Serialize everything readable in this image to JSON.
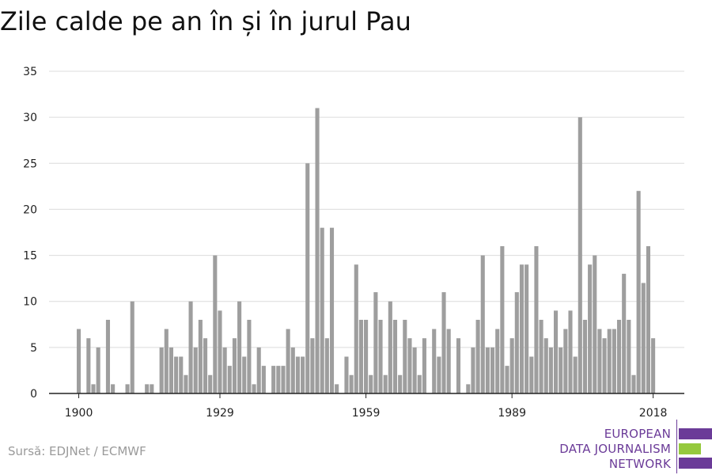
{
  "title": "Zile calde pe an în și în jurul Pau",
  "source": "Sursă: EDJNet / ECMWF",
  "logo": {
    "line1": "EUROPEAN",
    "line2": "DATA JOURNALISM",
    "line3": "NETWORK",
    "primary_color": "#6b3b98",
    "accent_color": "#95c93d"
  },
  "chart_data": {
    "type": "bar",
    "title": "Zile calde pe an în și în jurul Pau",
    "xlabel": "",
    "ylabel": "",
    "ylim": [
      0,
      35
    ],
    "yticks": [
      0,
      5,
      10,
      15,
      20,
      25,
      30,
      35
    ],
    "xticks": [
      1900,
      1929,
      1959,
      1989,
      2018
    ],
    "grid": true,
    "bar_color": "#9e9e9e",
    "x": [
      1900,
      1901,
      1902,
      1903,
      1904,
      1905,
      1906,
      1907,
      1908,
      1909,
      1910,
      1911,
      1912,
      1913,
      1914,
      1915,
      1916,
      1917,
      1918,
      1919,
      1920,
      1921,
      1922,
      1923,
      1924,
      1925,
      1926,
      1927,
      1928,
      1929,
      1930,
      1931,
      1932,
      1933,
      1934,
      1935,
      1936,
      1937,
      1938,
      1939,
      1940,
      1941,
      1942,
      1943,
      1944,
      1945,
      1946,
      1947,
      1948,
      1949,
      1950,
      1951,
      1952,
      1953,
      1954,
      1955,
      1956,
      1957,
      1958,
      1959,
      1960,
      1961,
      1962,
      1963,
      1964,
      1965,
      1966,
      1967,
      1968,
      1969,
      1970,
      1971,
      1972,
      1973,
      1974,
      1975,
      1976,
      1977,
      1978,
      1979,
      1980,
      1981,
      1982,
      1983,
      1984,
      1985,
      1986,
      1987,
      1988,
      1989,
      1990,
      1991,
      1992,
      1993,
      1994,
      1995,
      1996,
      1997,
      1998,
      1999,
      2000,
      2001,
      2002,
      2003,
      2004,
      2005,
      2006,
      2007,
      2008,
      2009,
      2010,
      2011,
      2012,
      2013,
      2014,
      2015,
      2016,
      2017,
      2018
    ],
    "values": [
      7,
      0,
      6,
      1,
      5,
      0,
      8,
      1,
      0,
      0,
      1,
      10,
      0,
      0,
      1,
      1,
      0,
      5,
      7,
      5,
      4,
      4,
      2,
      10,
      5,
      8,
      6,
      2,
      15,
      9,
      5,
      3,
      6,
      10,
      4,
      8,
      1,
      5,
      3,
      0,
      3,
      3,
      3,
      7,
      5,
      4,
      4,
      25,
      6,
      31,
      18,
      6,
      18,
      1,
      0,
      4,
      2,
      14,
      8,
      8,
      2,
      11,
      8,
      2,
      10,
      8,
      2,
      8,
      6,
      5,
      2,
      6,
      0,
      7,
      4,
      11,
      7,
      0,
      6,
      0,
      1,
      5,
      8,
      15,
      5,
      5,
      7,
      16,
      3,
      6,
      11,
      14,
      14,
      4,
      16,
      8,
      6,
      5,
      9,
      5,
      7,
      9,
      4,
      30,
      8,
      14,
      15,
      7,
      6,
      7,
      7,
      8,
      13,
      8,
      2,
      22,
      12,
      16,
      6
    ]
  }
}
